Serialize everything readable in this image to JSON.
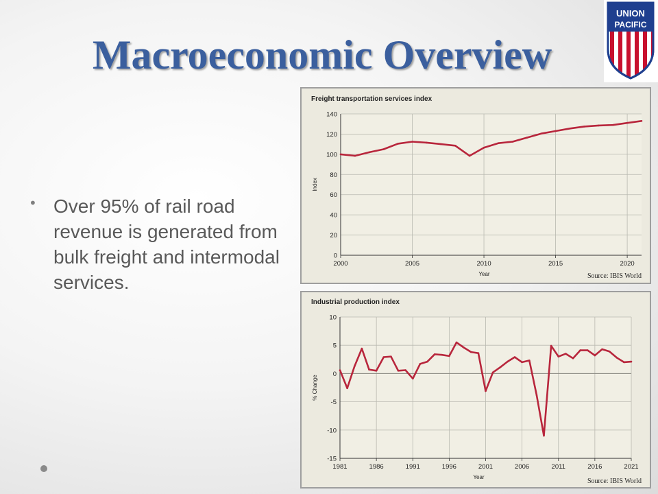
{
  "slide": {
    "title": "Macroeconomic Overview",
    "bullet": "Over 95% of rail road revenue is generated from bulk freight and intermodal services."
  },
  "logo": {
    "line1": "UNION",
    "line2": "PACIFIC",
    "colors": {
      "blue": "#1f3f8f",
      "red": "#c8102e",
      "white": "#ffffff"
    }
  },
  "colors": {
    "line": "#b8263c",
    "grid": "#b9b9b0",
    "chart_bg": "#eceadf",
    "title": "#3b5f9e"
  },
  "chart_data": [
    {
      "type": "line",
      "title": "Freight transportation services index",
      "xlabel": "Year",
      "ylabel": "Index",
      "source": "Source: IBIS World",
      "xlim": [
        2000,
        2021
      ],
      "ylim": [
        0,
        140
      ],
      "xticks": [
        2000,
        2005,
        2010,
        2015,
        2020
      ],
      "yticks": [
        0,
        20,
        40,
        60,
        80,
        100,
        120,
        140
      ],
      "grid": true,
      "x": [
        2000,
        2001,
        2002,
        2003,
        2004,
        2005,
        2006,
        2007,
        2008,
        2009,
        2010,
        2011,
        2012,
        2013,
        2014,
        2015,
        2016,
        2017,
        2018,
        2019,
        2020,
        2021
      ],
      "y": [
        100,
        98.5,
        102,
        105,
        110.5,
        112.5,
        111.5,
        110,
        108.5,
        98.5,
        106.5,
        111,
        112.5,
        116.5,
        120.5,
        123,
        125.5,
        127.5,
        128.5,
        129,
        131,
        133
      ]
    },
    {
      "type": "line",
      "title": "Industrial production index",
      "xlabel": "Year",
      "ylabel": "% Change",
      "source": "Source: IBIS World",
      "xlim": [
        1981,
        2021
      ],
      "ylim": [
        -15,
        10
      ],
      "xticks": [
        1981,
        1986,
        1991,
        1996,
        2001,
        2006,
        2011,
        2016,
        2021
      ],
      "yticks": [
        -15,
        -10,
        -5,
        0,
        5,
        10
      ],
      "grid": true,
      "x": [
        1981,
        1982,
        1983,
        1984,
        1985,
        1986,
        1987,
        1988,
        1989,
        1990,
        1991,
        1992,
        1993,
        1994,
        1995,
        1996,
        1997,
        1998,
        1999,
        2000,
        2001,
        2002,
        2003,
        2004,
        2005,
        2006,
        2007,
        2008,
        2009,
        2010,
        2011,
        2012,
        2013,
        2014,
        2015,
        2016,
        2017,
        2018,
        2019,
        2020,
        2021
      ],
      "y": [
        0.6,
        -2.6,
        1.3,
        4.4,
        0.7,
        0.5,
        2.9,
        3.0,
        0.5,
        0.6,
        -0.9,
        1.7,
        2.1,
        3.4,
        3.3,
        3.1,
        5.5,
        4.6,
        3.8,
        3.6,
        -3.1,
        0.2,
        1.1,
        2.1,
        2.9,
        2.0,
        2.3,
        -3.8,
        -11.0,
        4.9,
        3.0,
        3.5,
        2.7,
        4.1,
        4.1,
        3.2,
        4.3,
        3.9,
        2.8,
        2.0,
        2.1
      ]
    }
  ]
}
